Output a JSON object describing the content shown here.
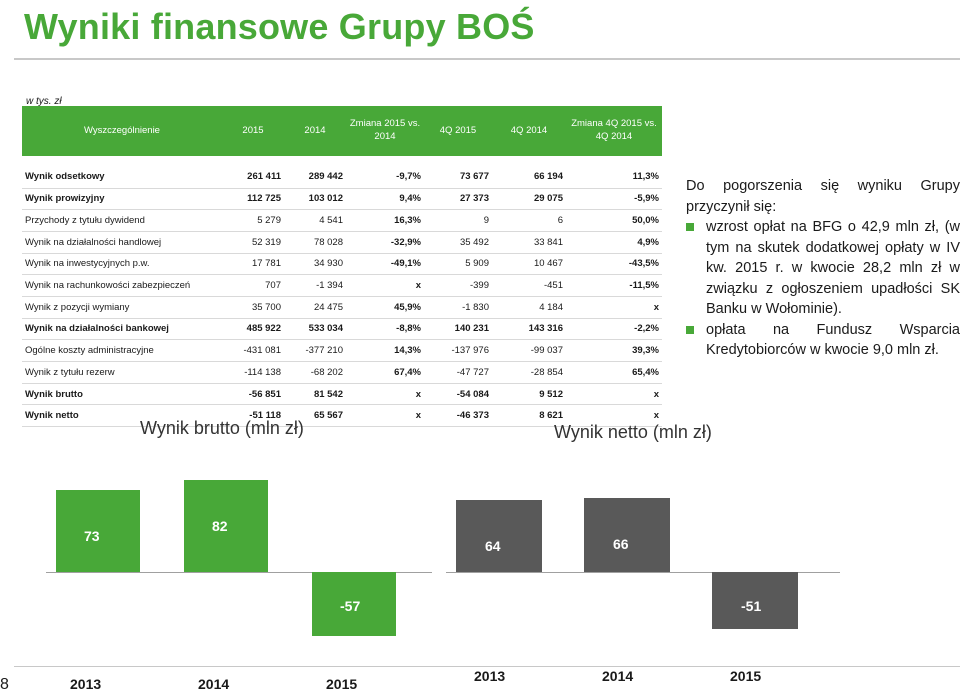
{
  "title": "Wyniki finansowe Grupy BOŚ",
  "unit": "w tys. zł",
  "table": {
    "headers": [
      "Wyszczególnienie",
      "2015",
      "2014",
      "Zmiana 2015 vs. 2014",
      "4Q 2015",
      "4Q 2014",
      "Zmiana 4Q 2015 vs. 4Q 2014"
    ],
    "rows": [
      {
        "name": "Wynik odsetkowy",
        "v2015": "261 411",
        "v2014": "289 442",
        "chg": "-9,7%",
        "q2015": "73 677",
        "q2014": "66 194",
        "qchg": "11,3%",
        "bold": true
      },
      {
        "name": "Wynik prowizyjny",
        "v2015": "112 725",
        "v2014": "103 012",
        "chg": "9,4%",
        "q2015": "27 373",
        "q2014": "29 075",
        "qchg": "-5,9%",
        "bold": true
      },
      {
        "name": "Przychody z tytułu dywidend",
        "v2015": "5 279",
        "v2014": "4 541",
        "chg": "16,3%",
        "q2015": "9",
        "q2014": "6",
        "qchg": "50,0%",
        "bold": false
      },
      {
        "name": "Wynik na działalności handlowej",
        "v2015": "52 319",
        "v2014": "78 028",
        "chg": "-32,9%",
        "q2015": "35 492",
        "q2014": "33 841",
        "qchg": "4,9%",
        "bold": false
      },
      {
        "name": "Wynik na inwestycyjnych p.w.",
        "v2015": "17 781",
        "v2014": "34 930",
        "chg": "-49,1%",
        "q2015": "5 909",
        "q2014": "10 467",
        "qchg": "-43,5%",
        "bold": false
      },
      {
        "name": "Wynik na rachunkowości zabezpieczeń",
        "v2015": "707",
        "v2014": "-1 394",
        "chg": "x",
        "q2015": "-399",
        "q2014": "-451",
        "qchg": "-11,5%",
        "bold": false
      },
      {
        "name": "Wynik z pozycji wymiany",
        "v2015": "35 700",
        "v2014": "24 475",
        "chg": "45,9%",
        "q2015": "-1 830",
        "q2014": "4 184",
        "qchg": "x",
        "bold": false
      },
      {
        "name": "Wynik na działalności bankowej",
        "v2015": "485 922",
        "v2014": "533 034",
        "chg": "-8,8%",
        "q2015": "140 231",
        "q2014": "143 316",
        "qchg": "-2,2%",
        "bold": true
      },
      {
        "name": "Ogólne koszty administracyjne",
        "v2015": "-431 081",
        "v2014": "-377 210",
        "chg": "14,3%",
        "q2015": "-137 976",
        "q2014": "-99 037",
        "qchg": "39,3%",
        "bold": false
      },
      {
        "name": "Wynik z tytułu rezerw",
        "v2015": "-114 138",
        "v2014": "-68 202",
        "chg": "67,4%",
        "q2015": "-47 727",
        "q2014": "-28 854",
        "qchg": "65,4%",
        "bold": false
      },
      {
        "name": "Wynik brutto",
        "v2015": "-56 851",
        "v2014": "81 542",
        "chg": "x",
        "q2015": "-54 084",
        "q2014": "9 512",
        "qchg": "x",
        "bold": true
      },
      {
        "name": "Wynik netto",
        "v2015": "-51 118",
        "v2014": "65 567",
        "chg": "x",
        "q2015": "-46 373",
        "q2014": "8 621",
        "qchg": "x",
        "bold": true
      }
    ]
  },
  "side": {
    "intro": "Do pogorszenia się wyniku Grupy przyczynił się:",
    "bullets": [
      "wzrost opłat na BFG o 42,9 mln zł, (w tym na skutek dodatkowej opłaty w IV kw. 2015 r. w kwocie 28,2 mln zł w związku z ogłoszeniem upadłości SK Banku w Wołominie).",
      "opłata na Fundusz Wsparcia Kredytobiorców w kwocie 9,0 mln zł."
    ]
  },
  "colors": {
    "green": "#48a838",
    "dark_grey": "#595959"
  },
  "chart_data": [
    {
      "type": "bar",
      "title": "Wynik brutto (mln zł)",
      "categories": [
        "2013",
        "2014",
        "2015"
      ],
      "values": [
        73,
        82,
        -57
      ],
      "labels": [
        "73",
        "82",
        "-57"
      ],
      "ylabel": "",
      "color": "#48a838"
    },
    {
      "type": "bar",
      "title": "Wynik netto (mln zł)",
      "categories": [
        "2013",
        "2014",
        "2015"
      ],
      "values": [
        64,
        66,
        -51
      ],
      "labels": [
        "64",
        "66",
        "-51"
      ],
      "ylabel": "",
      "color": "#595959"
    }
  ],
  "page_number": "8"
}
